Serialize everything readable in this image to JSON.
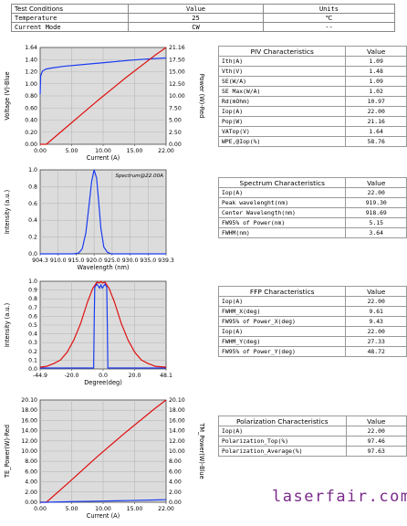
{
  "test_conditions": {
    "headers": [
      "Test Conditions",
      "Value",
      "Units"
    ],
    "rows": [
      [
        "Temperature",
        "25",
        "℃"
      ],
      [
        "Current Mode",
        "CW",
        "--"
      ]
    ]
  },
  "tables": {
    "piv": {
      "title": "PIV Characteristics",
      "value_header": "Value",
      "rows": [
        [
          "Ith(A)",
          "1.09"
        ],
        [
          "Vth(V)",
          "1.48"
        ],
        [
          "SE(W/A)",
          "1.09"
        ],
        [
          "SE Max(W/A)",
          "1.02"
        ],
        [
          "Rd(mOhm)",
          "10.97"
        ],
        [
          "Iop(A)",
          "22.00"
        ],
        [
          "Pop(W)",
          "21.16"
        ],
        [
          "VATop(V)",
          "1.64"
        ],
        [
          "WPE,@Iop(%)",
          "58.76"
        ]
      ]
    },
    "spectrum": {
      "title": "Spectrum Characteristics",
      "value_header": "Value",
      "rows": [
        [
          "Iop(A)",
          "22.00"
        ],
        [
          "Peak wavelenght(nm)",
          "919.30"
        ],
        [
          "Center Wavelength(nm)",
          "918.69"
        ],
        [
          "FW95% of Power(nm)",
          "5.15"
        ],
        [
          "FWHM(nm)",
          "3.64"
        ]
      ]
    },
    "ffp": {
      "title": "FFP Characteristics",
      "value_header": "Value",
      "rows": [
        [
          "Iop(A)",
          "22.00"
        ],
        [
          "FWHM_X(deg)",
          "9.61"
        ],
        [
          "FW95% of Power_X(deg)",
          "9.43"
        ],
        [
          "Iop(A)",
          "22.00"
        ],
        [
          "FWHM_Y(deg)",
          "27.33"
        ],
        [
          "FW95% of Power_Y(deg)",
          "48.72"
        ]
      ]
    },
    "polarization": {
      "title": "Polarization Characteristics",
      "value_header": "Value",
      "rows": [
        [
          "Iop(A)",
          "22.00"
        ],
        [
          "Polarization_Top(%)",
          "97.46"
        ],
        [
          "Polarization_Average(%)",
          "97.63"
        ]
      ]
    }
  },
  "chart_data": [
    {
      "type": "line",
      "xlabel": "Current (A)",
      "ylabel": "Voltage (V)-Blue",
      "y2label": "Power (W)-Red",
      "xlim": [
        0,
        22
      ],
      "ylim": [
        0,
        1.84
      ],
      "y2lim": [
        0,
        21.16
      ],
      "xticks": [
        "0.00",
        "5.00",
        "10.00",
        "15.00",
        "22.00"
      ],
      "yticks": [
        "0.00",
        "0.20",
        "0.40",
        "0.60",
        "0.80",
        "1.00",
        "1.20",
        "1.40",
        "1.64"
      ],
      "y2ticks": [
        "0.00",
        "2.50",
        "5.00",
        "7.50",
        "10.00",
        "12.50",
        "15.00",
        "17.50",
        "21.16"
      ],
      "series": [
        {
          "color": "#1a3cf0",
          "axis": "left",
          "x": [
            0,
            0.1,
            0.4,
            1,
            2,
            4,
            8,
            12,
            16,
            20,
            22
          ],
          "y": [
            0.95,
            1.3,
            1.39,
            1.43,
            1.45,
            1.48,
            1.52,
            1.56,
            1.6,
            1.63,
            1.64
          ]
        },
        {
          "color": "#e01010",
          "axis": "right",
          "x": [
            0,
            1.09,
            5,
            10,
            15,
            20,
            22
          ],
          "y": [
            0,
            0,
            4.2,
            9.5,
            14.6,
            19.4,
            21.16
          ]
        }
      ]
    },
    {
      "type": "line",
      "annotation": "Spectrum@22.00A",
      "xlabel": "Wavelength (nm)",
      "ylabel": "Intensity (a.u.)",
      "xlim": [
        904.3,
        939.3
      ],
      "ylim": [
        0,
        1
      ],
      "xticks": [
        "904.3",
        "910.0",
        "915.0",
        "920.0",
        "925.0",
        "930.0",
        "935.0",
        "939.3"
      ],
      "yticks": [
        "0.0",
        "0.2",
        "0.4",
        "0.6",
        "0.8",
        "1.0"
      ],
      "series": [
        {
          "color": "#1a3cf0",
          "x": [
            904.3,
            913.5,
            915.0,
            916.0,
            917.0,
            918.0,
            918.6,
            919.3,
            920.0,
            920.6,
            921.2,
            922.0,
            923.0,
            924.0,
            939.3
          ],
          "y": [
            0,
            0,
            0.01,
            0.06,
            0.25,
            0.62,
            0.86,
            1.0,
            0.9,
            0.6,
            0.3,
            0.08,
            0.02,
            0,
            0
          ]
        }
      ]
    },
    {
      "type": "line",
      "xlabel": "Degree(deg)",
      "ylabel": "Intensity (a.u.)",
      "xlim": [
        -44.9,
        48.1
      ],
      "ylim": [
        0,
        1
      ],
      "xticks": [
        "-44.9",
        "-20.0",
        "0.0",
        "20.0",
        "48.1"
      ],
      "yticks": [
        "0.0",
        "0.1",
        "0.2",
        "0.3",
        "0.4",
        "0.5",
        "0.6",
        "0.7",
        "0.8",
        "0.9",
        "1.0"
      ],
      "series": [
        {
          "color": "#1a3cf0",
          "x": [
            -44.9,
            -5.4,
            -5.0,
            -4.6,
            -3.0,
            -1.0,
            0,
            1.0,
            3.0,
            4.3,
            4.7,
            5.1,
            48.1
          ],
          "y": [
            0.01,
            0.01,
            0.5,
            0.93,
            0.97,
            0.92,
            0.96,
            0.92,
            0.97,
            0.93,
            0.5,
            0.01,
            0.01
          ]
        },
        {
          "color": "#e01010",
          "x": [
            -44.9,
            -40,
            -35,
            -30,
            -25,
            -20,
            -15,
            -10,
            -6,
            -3,
            -1,
            0,
            1,
            3,
            6,
            10,
            15,
            20,
            25,
            30,
            35,
            40,
            48.1
          ],
          "y": [
            0.02,
            0.03,
            0.06,
            0.1,
            0.19,
            0.33,
            0.52,
            0.76,
            0.92,
            0.99,
            0.98,
            1.0,
            0.98,
            0.99,
            0.92,
            0.76,
            0.52,
            0.33,
            0.19,
            0.1,
            0.06,
            0.03,
            0.02
          ]
        }
      ]
    },
    {
      "type": "line",
      "xlabel": "Current (A)",
      "ylabel": "TE_Power(W)-Red",
      "y2label": "TM_Power(W)-Blue",
      "xlim": [
        0,
        22
      ],
      "ylim": [
        0,
        20.1
      ],
      "y2lim": [
        0,
        20.1
      ],
      "xticks": [
        "0.00",
        "5.00",
        "10.00",
        "15.00",
        "22.00"
      ],
      "yticks": [
        "0.00",
        "2.00",
        "4.00",
        "6.00",
        "8.00",
        "10.00",
        "12.00",
        "14.00",
        "16.00",
        "18.00",
        "20.10"
      ],
      "y2ticks": [
        "0.00",
        "2.00",
        "4.00",
        "6.00",
        "8.00",
        "10.00",
        "12.00",
        "14.00",
        "16.00",
        "18.00",
        "20.10"
      ],
      "series": [
        {
          "color": "#e01010",
          "axis": "left",
          "x": [
            0,
            1.09,
            5,
            10,
            15,
            20,
            22
          ],
          "y": [
            0,
            0,
            3.9,
            9.0,
            13.8,
            18.4,
            20.1
          ]
        },
        {
          "color": "#1a3cf0",
          "axis": "right",
          "x": [
            0,
            1.09,
            5,
            10,
            15,
            20,
            22
          ],
          "y": [
            0,
            0,
            0.1,
            0.22,
            0.33,
            0.45,
            0.5
          ]
        }
      ]
    }
  ],
  "brand": "laserfair.com"
}
